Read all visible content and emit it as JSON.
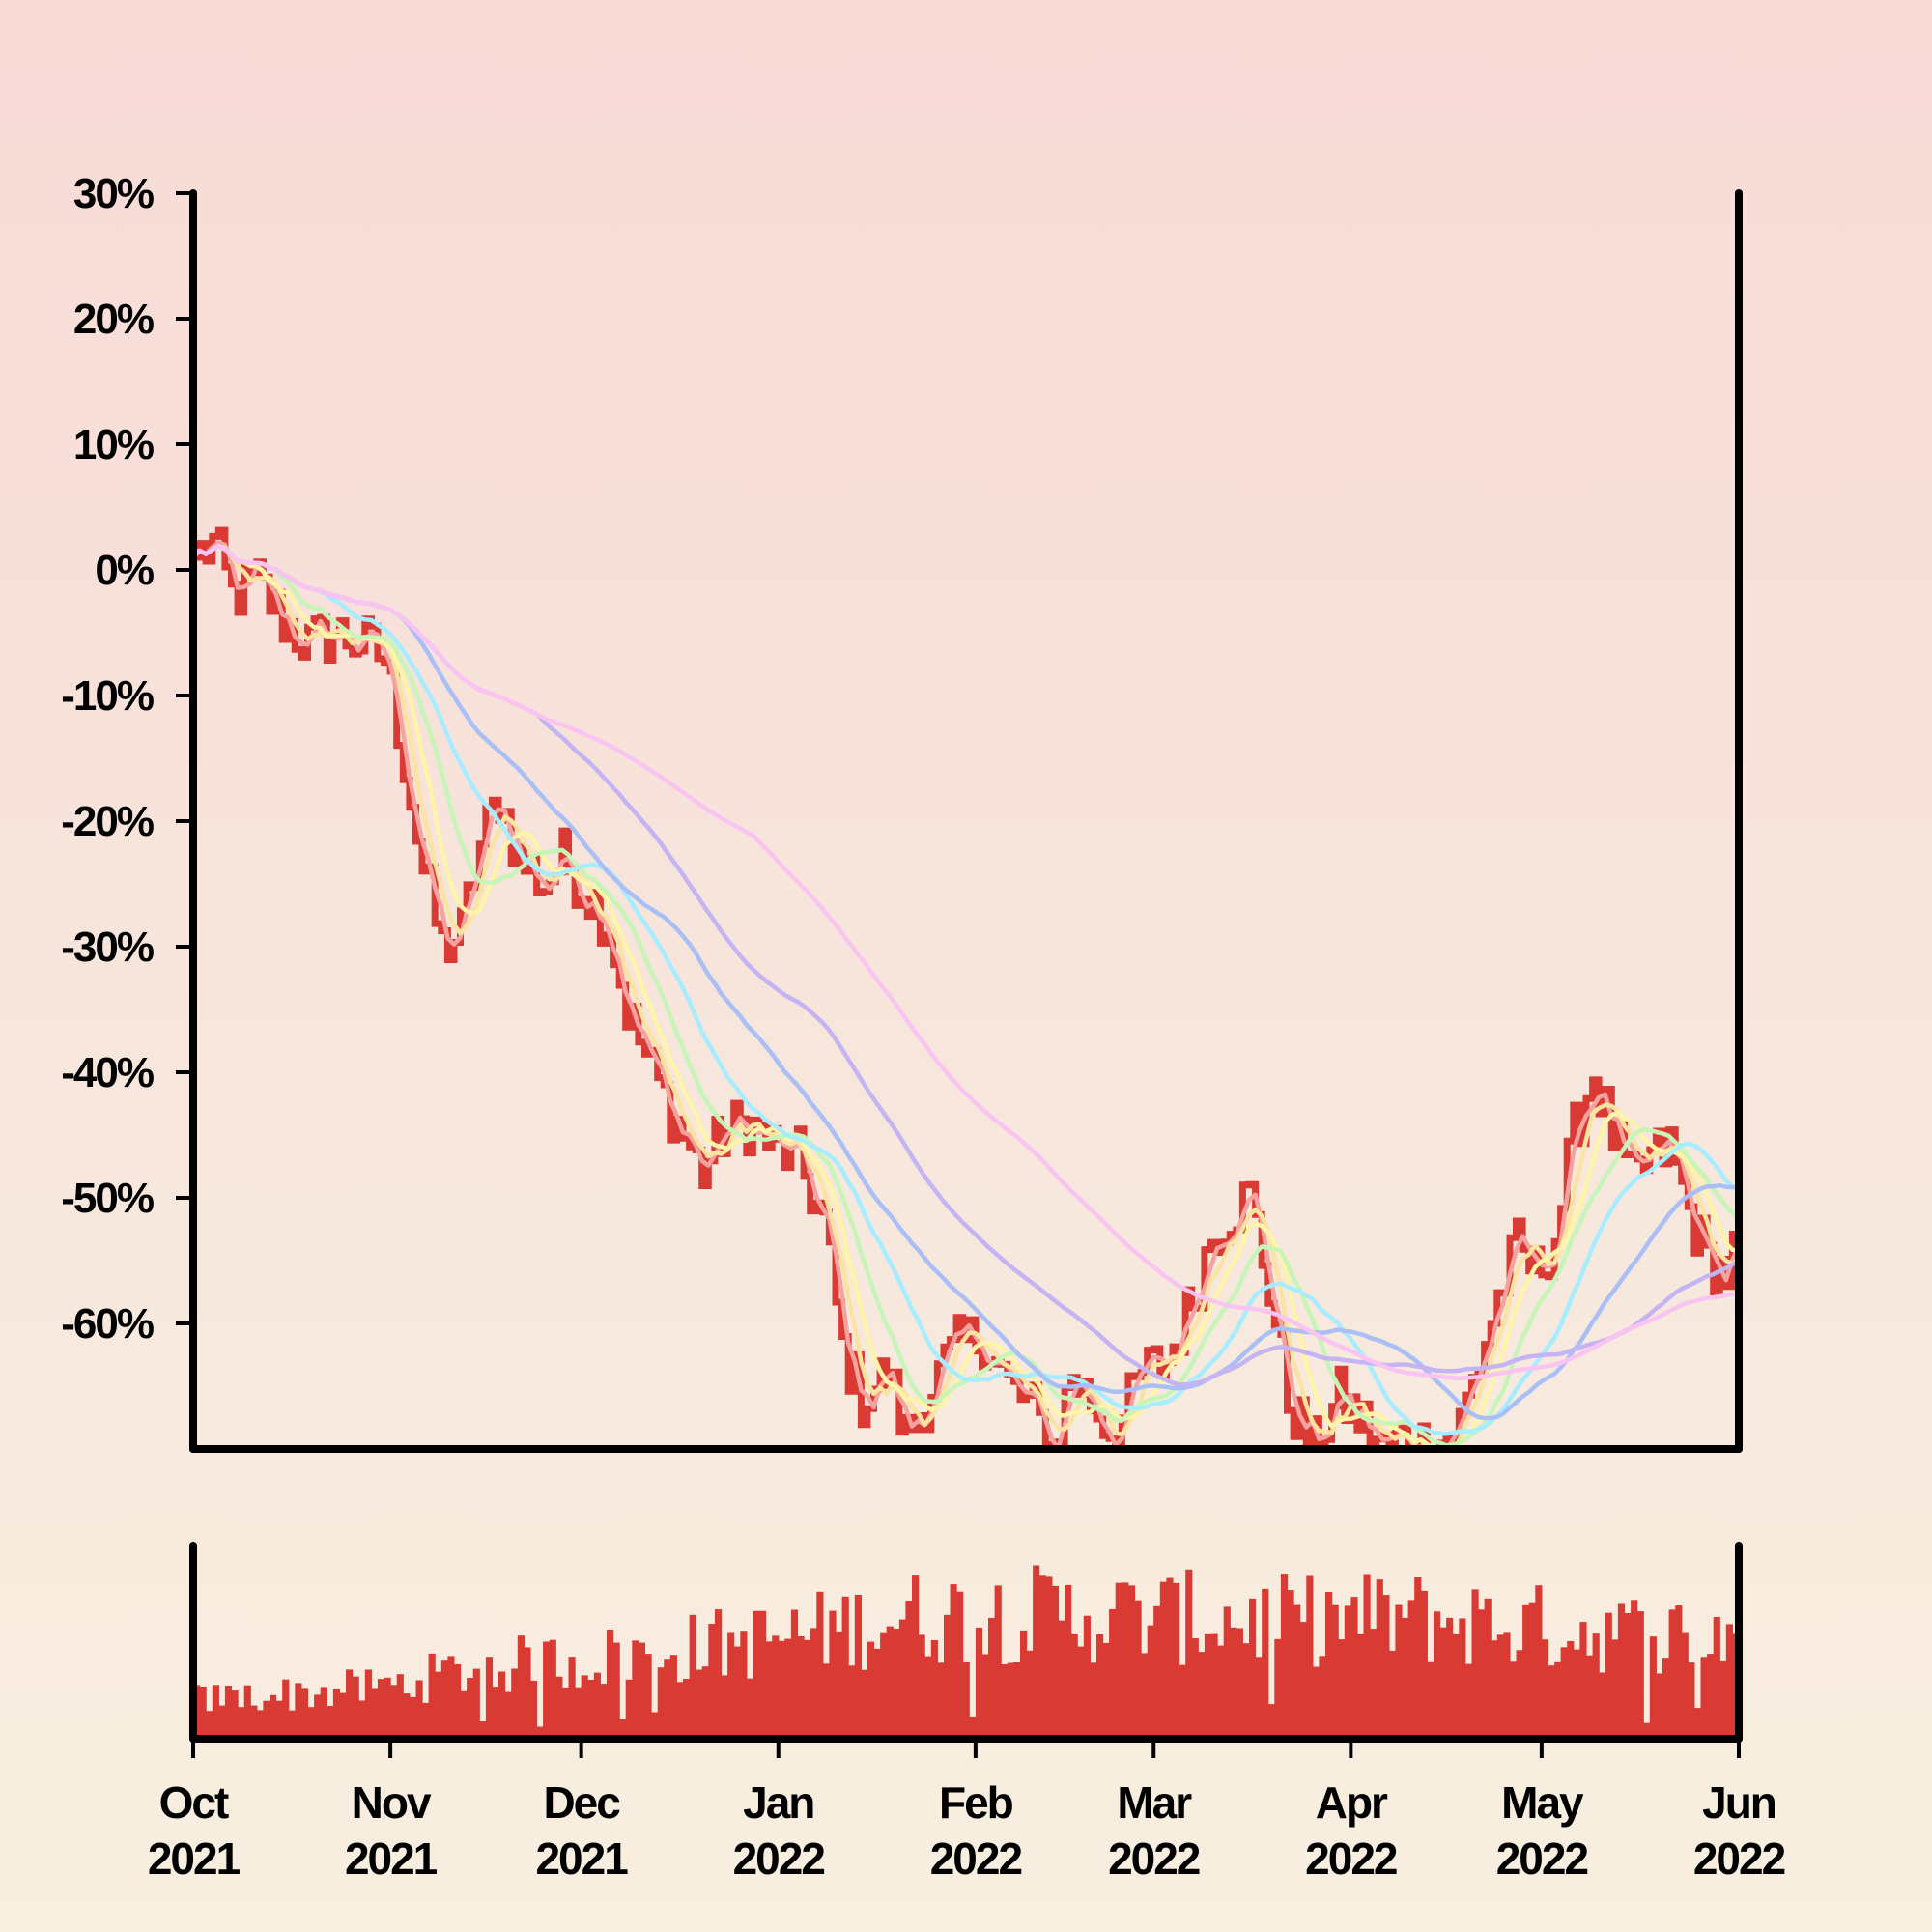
{
  "chart_data": [
    {
      "type": "line",
      "title": "",
      "xlabel": "",
      "ylabel": "",
      "x_range": [
        "2021-10-01",
        "2022-06-01"
      ],
      "ylim": [
        -70,
        30
      ],
      "y_ticks": [
        30,
        20,
        10,
        0,
        -10,
        -20,
        -30,
        -40,
        -50,
        -60
      ],
      "y_tick_labels": [
        "30%",
        "20%",
        "10%",
        "0%",
        "-10%",
        "-20%",
        "-30%",
        "-40%",
        "-50%",
        "-60%"
      ],
      "grid": false,
      "legend": "none",
      "colors": {
        "price": "#d93a33",
        "ma1": "#f6a3a0",
        "ma2": "#fbe3a1",
        "ma3": "#fff4a8",
        "ma4": "#c7f5b8",
        "ma5": "#a8ecff",
        "ma6": "#a9bff5",
        "ma7": "#c4b4f4",
        "ma8": "#f9c4f2"
      },
      "price_anchors": [
        [
          "2021-10-01",
          1
        ],
        [
          "2021-10-04",
          2
        ],
        [
          "2021-10-07",
          -2
        ],
        [
          "2021-10-11",
          -1
        ],
        [
          "2021-10-15",
          -4
        ],
        [
          "2021-10-19",
          -6
        ],
        [
          "2021-10-23",
          -5
        ],
        [
          "2021-10-28",
          -6
        ],
        [
          "2021-10-31",
          -7
        ],
        [
          "2021-11-03",
          -15
        ],
        [
          "2021-11-06",
          -24
        ],
        [
          "2021-11-09",
          -30
        ],
        [
          "2021-11-12",
          -29
        ],
        [
          "2021-11-15",
          -22
        ],
        [
          "2021-11-18",
          -18
        ],
        [
          "2021-11-21",
          -23
        ],
        [
          "2021-11-25",
          -25
        ],
        [
          "2021-11-28",
          -23
        ],
        [
          "2021-12-01",
          -25
        ],
        [
          "2021-12-05",
          -28
        ],
        [
          "2021-12-08",
          -35
        ],
        [
          "2021-12-12",
          -40
        ],
        [
          "2021-12-16",
          -44
        ],
        [
          "2021-12-20",
          -48
        ],
        [
          "2021-12-23",
          -45
        ],
        [
          "2021-12-27",
          -44
        ],
        [
          "2021-12-31",
          -46
        ],
        [
          "2022-01-04",
          -47
        ],
        [
          "2022-01-08",
          -52
        ],
        [
          "2022-01-11",
          -62
        ],
        [
          "2022-01-14",
          -66
        ],
        [
          "2022-01-18",
          -64
        ],
        [
          "2022-01-21",
          -69
        ],
        [
          "2022-01-25",
          -65
        ],
        [
          "2022-01-29",
          -62
        ],
        [
          "2022-02-02",
          -61
        ],
        [
          "2022-02-06",
          -65
        ],
        [
          "2022-02-10",
          -67
        ],
        [
          "2022-02-13",
          -70
        ],
        [
          "2022-02-16",
          -64
        ],
        [
          "2022-02-20",
          -67
        ],
        [
          "2022-02-23",
          -69
        ],
        [
          "2022-02-27",
          -64
        ],
        [
          "2022-03-03",
          -63
        ],
        [
          "2022-03-07",
          -58
        ],
        [
          "2022-03-10",
          -53
        ],
        [
          "2022-03-13",
          -51
        ],
        [
          "2022-03-16",
          -50
        ],
        [
          "2022-03-19",
          -57
        ],
        [
          "2022-03-22",
          -66
        ],
        [
          "2022-03-26",
          -70
        ],
        [
          "2022-03-30",
          -66
        ],
        [
          "2022-04-03",
          -68
        ],
        [
          "2022-04-06",
          -70
        ],
        [
          "2022-04-10",
          -69
        ],
        [
          "2022-04-14",
          -70
        ],
        [
          "2022-04-18",
          -68
        ],
        [
          "2022-04-21",
          -63
        ],
        [
          "2022-04-24",
          -58
        ],
        [
          "2022-04-27",
          -54
        ],
        [
          "2022-04-30",
          -56
        ],
        [
          "2022-05-03",
          -53
        ],
        [
          "2022-05-06",
          -45
        ],
        [
          "2022-05-09",
          -40
        ],
        [
          "2022-05-12",
          -45
        ],
        [
          "2022-05-15",
          -49
        ],
        [
          "2022-05-18",
          -47
        ],
        [
          "2022-05-21",
          -46
        ],
        [
          "2022-05-24",
          -51
        ],
        [
          "2022-05-27",
          -55
        ],
        [
          "2022-05-30",
          -56
        ],
        [
          "2022-06-01",
          -53
        ]
      ],
      "moving_average_windows_days": [
        3,
        5,
        8,
        13,
        21,
        34,
        55,
        89
      ]
    },
    {
      "type": "bar",
      "series_name": "",
      "x_range": [
        "2021-10-01",
        "2022-06-01"
      ],
      "x_ticks": [
        "2021-10-01",
        "2021-11-01",
        "2021-12-01",
        "2022-01-01",
        "2022-02-01",
        "2022-03-01",
        "2022-04-01",
        "2022-05-01",
        "2022-06-01"
      ],
      "x_tick_labels": [
        [
          "Oct",
          "2021"
        ],
        [
          "Nov",
          "2021"
        ],
        [
          "Dec",
          "2021"
        ],
        [
          "Jan",
          "2022"
        ],
        [
          "Feb",
          "2022"
        ],
        [
          "Mar",
          "2022"
        ],
        [
          "Apr",
          "2022"
        ],
        [
          "May",
          "2022"
        ],
        [
          "Jun",
          "2022"
        ]
      ],
      "ylim": [
        0,
        100
      ],
      "color": "#d93a33",
      "volume_level_anchors": [
        [
          "2021-10-01",
          22
        ],
        [
          "2021-10-20",
          26
        ],
        [
          "2021-11-01",
          30
        ],
        [
          "2021-11-15",
          40
        ],
        [
          "2021-12-01",
          44
        ],
        [
          "2021-12-20",
          52
        ],
        [
          "2022-01-01",
          56
        ],
        [
          "2022-01-20",
          68
        ],
        [
          "2022-02-10",
          70
        ],
        [
          "2022-03-01",
          68
        ],
        [
          "2022-03-20",
          66
        ],
        [
          "2022-04-10",
          68
        ],
        [
          "2022-05-01",
          62
        ],
        [
          "2022-05-20",
          58
        ],
        [
          "2022-06-01",
          60
        ]
      ]
    }
  ]
}
